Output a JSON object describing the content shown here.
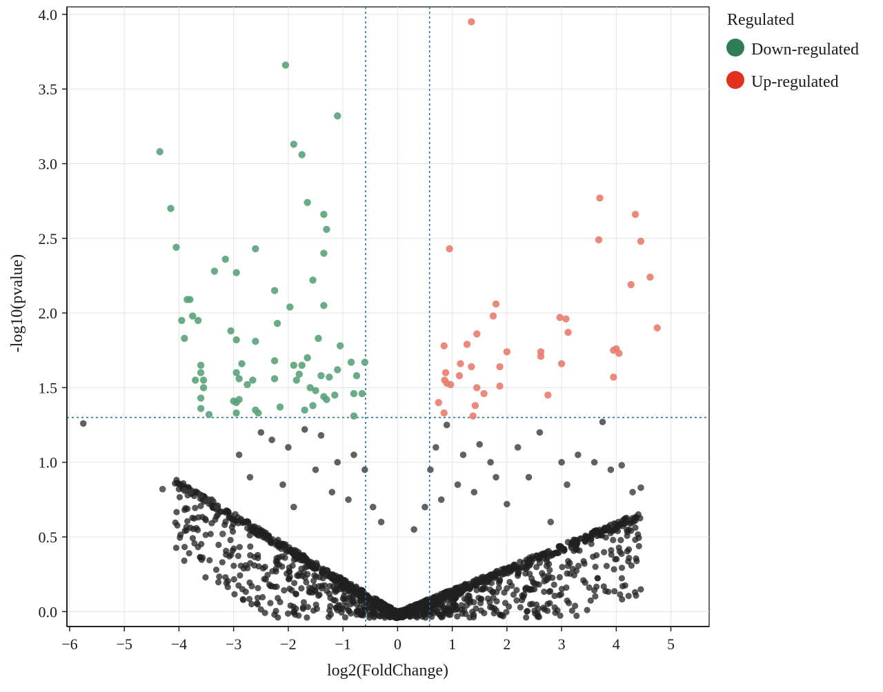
{
  "chart_data": {
    "type": "scatter",
    "title": "",
    "xlabel": "log2(FoldChange)",
    "ylabel": "-log10(pvalue)",
    "xlim": [
      -6.05,
      5.7
    ],
    "ylim": [
      -0.1,
      4.05
    ],
    "x_ticks": [
      -6,
      -5,
      -4,
      -3,
      -2,
      -1,
      0,
      1,
      2,
      3,
      4,
      5
    ],
    "x_tick_labels": [
      "−6",
      "−5",
      "−4",
      "−3",
      "−2",
      "−1",
      "0",
      "1",
      "2",
      "3",
      "4",
      "5"
    ],
    "y_ticks": [
      0,
      0.5,
      1,
      1.5,
      2,
      2.5,
      3,
      3.5,
      4
    ],
    "y_tick_labels": [
      "0.0",
      "0.5",
      "1.0",
      "1.5",
      "2.0",
      "2.5",
      "3.0",
      "3.5",
      "4.0"
    ],
    "grid": true,
    "thresholds": {
      "log2fc": [
        -0.585,
        0.585
      ],
      "neg_log10_p": 1.3,
      "line_color": "#2a6e96"
    },
    "legend": {
      "title": "Regulated",
      "position": "right",
      "entries": [
        {
          "label": "Down-regulated",
          "color": "#2e7d54"
        },
        {
          "label": "Up-regulated",
          "color": "#e0301e"
        }
      ]
    },
    "series": [
      {
        "name": "Down-regulated",
        "color": "#5aa37a",
        "x": [
          -2.05,
          -1.1,
          -4.35,
          -1.9,
          -1.75,
          -4.15,
          -1.65,
          -1.35,
          -1.3,
          -4.05,
          -2.6,
          -3.15,
          -1.35,
          -3.35,
          -2.95,
          -1.55,
          -2.25,
          -3.85,
          -3.8,
          -1.97,
          -1.35,
          -3.95,
          -3.75,
          -3.65,
          -2.2,
          -3.05,
          -3.9,
          -2.95,
          -2.6,
          -1.45,
          -1.05,
          -1.65,
          -2.25,
          -1.9,
          -0.6,
          -1.75,
          -3.6,
          -2.85,
          -0.85,
          -3.6,
          -2.95,
          -1.1,
          -1.8,
          -0.75,
          -1.4,
          -2.9,
          -3.55,
          -3.7,
          -1.85,
          -1.25,
          -2.65,
          -2.25,
          -2.75,
          -3.55,
          -1.6,
          -1.5,
          -0.8,
          -1.15,
          -0.65,
          -2.9,
          -3.0,
          -1.3,
          -3.6,
          -1.35,
          -1.55,
          -2.95,
          -2.6,
          -3.6,
          -3.45,
          -2.55,
          -2.95,
          -0.8,
          -2.15,
          -1.7
        ],
        "y": [
          3.66,
          3.32,
          3.08,
          3.13,
          3.06,
          2.7,
          2.74,
          2.66,
          2.56,
          2.44,
          2.43,
          2.36,
          2.4,
          2.28,
          2.27,
          2.22,
          2.15,
          2.09,
          2.09,
          2.04,
          2.05,
          1.95,
          1.98,
          1.95,
          1.93,
          1.88,
          1.83,
          1.82,
          1.81,
          1.83,
          1.78,
          1.7,
          1.68,
          1.65,
          1.67,
          1.65,
          1.65,
          1.66,
          1.67,
          1.6,
          1.6,
          1.62,
          1.59,
          1.58,
          1.58,
          1.56,
          1.55,
          1.55,
          1.55,
          1.57,
          1.55,
          1.56,
          1.52,
          1.5,
          1.5,
          1.48,
          1.46,
          1.45,
          1.46,
          1.42,
          1.41,
          1.42,
          1.43,
          1.44,
          1.38,
          1.4,
          1.35,
          1.36,
          1.32,
          1.33,
          1.33,
          1.31,
          1.37,
          1.35
        ]
      },
      {
        "name": "Up-regulated",
        "color": "#e87c6e",
        "x": [
          1.35,
          3.7,
          4.35,
          3.68,
          4.45,
          0.95,
          4.62,
          4.27,
          1.8,
          1.75,
          2.97,
          3.08,
          4.75,
          3.12,
          1.45,
          1.27,
          2.0,
          2.62,
          0.85,
          4.0,
          3.95,
          4.05,
          1.15,
          0.88,
          1.35,
          2.62,
          3.0,
          1.87,
          1.13,
          3.95,
          0.86,
          0.97,
          0.9,
          1.87,
          1.45,
          1.58,
          2.75,
          1.42,
          0.75,
          0.85,
          1.38
        ],
        "y": [
          3.95,
          2.77,
          2.66,
          2.49,
          2.48,
          2.43,
          2.24,
          2.19,
          2.06,
          1.98,
          1.97,
          1.96,
          1.9,
          1.87,
          1.86,
          1.79,
          1.74,
          1.74,
          1.78,
          1.76,
          1.75,
          1.73,
          1.66,
          1.6,
          1.64,
          1.71,
          1.66,
          1.64,
          1.58,
          1.57,
          1.55,
          1.52,
          1.53,
          1.51,
          1.5,
          1.46,
          1.45,
          1.38,
          1.4,
          1.33,
          1.31
        ]
      },
      {
        "name": "",
        "color": "#3a3a3a",
        "x": [
          -5.75,
          -4.3,
          -3.9,
          -3.8,
          -3.6,
          -3.5,
          -3.3,
          -3.2,
          -2.9,
          -2.5,
          -2.3,
          -2.0,
          -1.7,
          -1.4,
          -1.1,
          -0.8,
          -0.6,
          -0.45,
          -0.3,
          0.3,
          0.5,
          0.7,
          0.9,
          1.2,
          1.5,
          1.8,
          2.2,
          2.6,
          3.0,
          3.3,
          3.6,
          3.75,
          3.9,
          4.1,
          4.3,
          4.45,
          -2.7,
          -2.1,
          -1.5,
          -0.9,
          0.6,
          1.1,
          1.7,
          2.4,
          3.1,
          -3.4,
          -1.9,
          -1.2,
          0.8,
          1.4,
          2.0,
          2.8
        ],
        "y": [
          1.26,
          0.82,
          0.81,
          0.8,
          0.78,
          0.74,
          0.7,
          0.52,
          1.05,
          1.2,
          1.15,
          1.1,
          1.22,
          1.18,
          1.0,
          1.05,
          0.95,
          0.7,
          0.6,
          0.55,
          0.7,
          1.1,
          1.25,
          1.05,
          1.12,
          0.9,
          1.1,
          1.2,
          1.0,
          1.05,
          1.0,
          1.27,
          0.95,
          0.98,
          0.8,
          0.83,
          0.9,
          0.85,
          0.95,
          0.75,
          0.95,
          0.85,
          1.0,
          0.9,
          0.85,
          0.75,
          0.7,
          0.8,
          0.75,
          0.8,
          0.72,
          0.6
        ]
      }
    ]
  }
}
